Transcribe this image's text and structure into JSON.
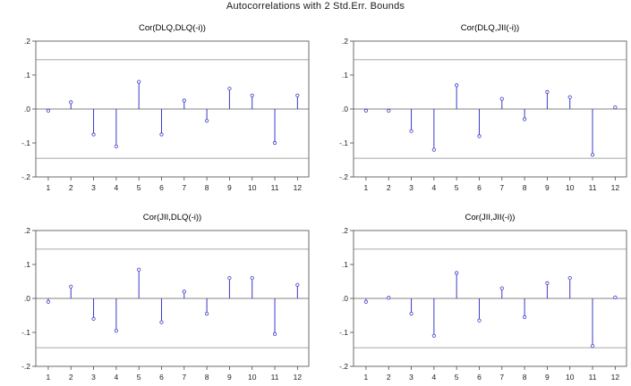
{
  "figure": {
    "title": "Autocorrelations with 2 Std.Err. Bounds"
  },
  "chart_data": [
    {
      "type": "bar",
      "title": "Cor(DLQ,DLQ(-i))",
      "categories": [
        "1",
        "2",
        "3",
        "4",
        "5",
        "6",
        "7",
        "8",
        "9",
        "10",
        "11",
        "12"
      ],
      "values": [
        -0.005,
        0.02,
        -0.075,
        -0.11,
        0.08,
        -0.075,
        0.025,
        -0.035,
        0.06,
        0.04,
        -0.1,
        0.04
      ],
      "bounds": [
        -0.145,
        0.145
      ],
      "ylim": [
        -0.2,
        0.2
      ],
      "yticks": [
        ".2",
        ".1",
        ".0",
        "-.1",
        "-.2"
      ],
      "ytick_values": [
        0.2,
        0.1,
        0.0,
        -0.1,
        -0.2
      ],
      "xlabel": "",
      "ylabel": ""
    },
    {
      "type": "bar",
      "title": "Cor(DLQ,JII(-i))",
      "categories": [
        "1",
        "2",
        "3",
        "4",
        "5",
        "6",
        "7",
        "8",
        "9",
        "10",
        "11",
        "12"
      ],
      "values": [
        -0.005,
        -0.005,
        -0.065,
        -0.12,
        0.07,
        -0.08,
        0.03,
        -0.03,
        0.05,
        0.035,
        -0.135,
        0.005
      ],
      "bounds": [
        -0.145,
        0.145
      ],
      "ylim": [
        -0.2,
        0.2
      ],
      "yticks": [
        ".2",
        ".1",
        ".0",
        "-.1",
        "-.2"
      ],
      "ytick_values": [
        0.2,
        0.1,
        0.0,
        -0.1,
        -0.2
      ],
      "xlabel": "",
      "ylabel": ""
    },
    {
      "type": "bar",
      "title": "Cor(JII,DLQ(-i))",
      "categories": [
        "1",
        "2",
        "3",
        "4",
        "5",
        "6",
        "7",
        "8",
        "9",
        "10",
        "11",
        "12"
      ],
      "values": [
        -0.01,
        0.035,
        -0.06,
        -0.095,
        0.085,
        -0.07,
        0.02,
        -0.045,
        0.06,
        0.06,
        -0.105,
        0.04
      ],
      "bounds": [
        -0.145,
        0.145
      ],
      "ylim": [
        -0.2,
        0.2
      ],
      "yticks": [
        ".2",
        ".1",
        ".0",
        "-.1",
        "-.2"
      ],
      "ytick_values": [
        0.2,
        0.1,
        0.0,
        -0.1,
        -0.2
      ],
      "xlabel": "",
      "ylabel": ""
    },
    {
      "type": "bar",
      "title": "Cor(JII,JII(-i))",
      "categories": [
        "1",
        "2",
        "3",
        "4",
        "5",
        "6",
        "7",
        "8",
        "9",
        "10",
        "11",
        "12"
      ],
      "values": [
        -0.01,
        0.002,
        -0.045,
        -0.11,
        0.075,
        -0.065,
        0.03,
        -0.055,
        0.045,
        0.06,
        -0.14,
        0.003
      ],
      "bounds": [
        -0.145,
        0.145
      ],
      "ylim": [
        -0.2,
        0.2
      ],
      "yticks": [
        ".2",
        ".1",
        ".0",
        "-.1",
        "-.2"
      ],
      "ytick_values": [
        0.2,
        0.1,
        0.0,
        -0.1,
        -0.2
      ],
      "xlabel": "",
      "ylabel": ""
    }
  ],
  "colors": {
    "stem": "#3a3ac8",
    "marker": "#3a3ac8",
    "zero_line": "#5a5a5a",
    "bound_line": "#8a8a8a",
    "frame": "#4a4a4a"
  }
}
